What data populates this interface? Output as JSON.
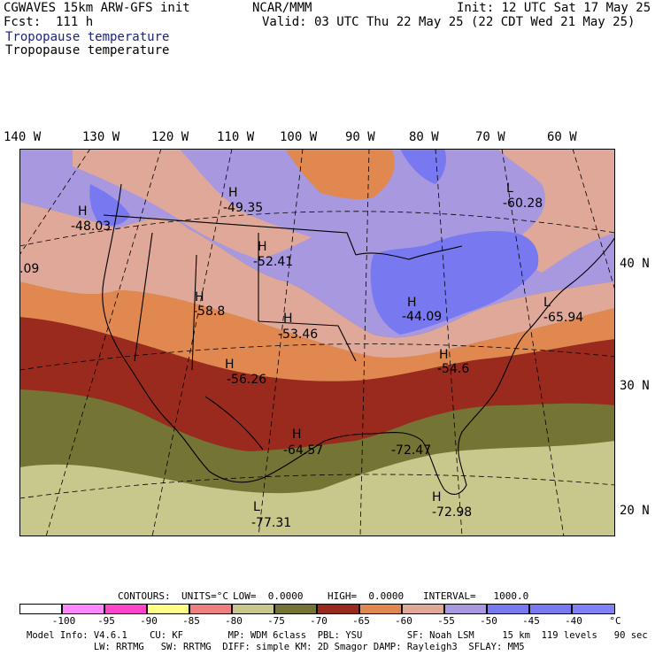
{
  "header": {
    "model": "CGWAVES 15km ARW-GFS init",
    "forecast": "Fcst:  111 h",
    "org": "NCAR/MMM",
    "init": "Init: 12 UTC Sat 17 May 25",
    "valid": "Valid: 03 UTC Thu 22 May 25 (22 CDT Wed 21 May 25)",
    "field_title_1": "Tropopause temperature",
    "field_title_2": "Tropopause temperature"
  },
  "colors": {
    "title_blue": "#1a237e",
    "bins": [
      "#ffffff",
      "#ff88ff",
      "#ff44cc",
      "#ffff88",
      "#f08080",
      "#c8c88c",
      "#747434",
      "#9a2a1e",
      "#e08850",
      "#e0a898",
      "#a898e0",
      "#7878f0",
      "#8080f8"
    ]
  },
  "lon_labels": [
    "140 W",
    "130 W",
    "120 W",
    "110 W",
    "100 W",
    "90 W",
    "80 W",
    "70 W",
    "60 W"
  ],
  "lat_labels": [
    "40 N",
    "30 N",
    "20 N"
  ],
  "map_labels": [
    {
      "type": "H",
      "value": "-48.03"
    },
    {
      "type": "H",
      "value": "-49.35"
    },
    {
      "type": "L",
      "value": "-60.28"
    },
    {
      "type": "H",
      "value": "-52.41"
    },
    {
      "type": "H",
      "value": "-58.8"
    },
    {
      "type": "H",
      "value": "-53.46"
    },
    {
      "type": "H",
      "value": "-44.09"
    },
    {
      "type": "L",
      "value": "-65.94"
    },
    {
      "type": "H",
      "value": "-56.26"
    },
    {
      "type": "H",
      "value": "-54.6"
    },
    {
      "type": "H",
      "value": "-64.57"
    },
    {
      "type": "",
      "value": "-72.47"
    },
    {
      "type": "L",
      "value": "-77.31"
    },
    {
      "type": "H",
      "value": "-72.98"
    },
    {
      "type": "",
      "value": ".09"
    }
  ],
  "contours": {
    "label": "CONTOURS:",
    "units": "UNITS=°C",
    "low": "LOW=  0.0000",
    "high": "HIGH=  0.0000",
    "interval": "INTERVAL=   1000.0"
  },
  "legend": {
    "ticks": [
      "-100",
      "-95",
      "-90",
      "-85",
      "-80",
      "-75",
      "-70",
      "-65",
      "-60",
      "-55",
      "-50",
      "-45",
      "-40"
    ],
    "unit": "°C"
  },
  "footer": {
    "line1": "Model Info: V4.6.1    CU: KF        MP: WDM 6class  PBL: YSU        SF: Noah LSM     15 km  119 levels   90 sec",
    "line2": "            LW: RRTMG   SW: RRTMG  DIFF: simple KM: 2D Smagor DAMP: Rayleigh3  SFLAY: MM5"
  }
}
